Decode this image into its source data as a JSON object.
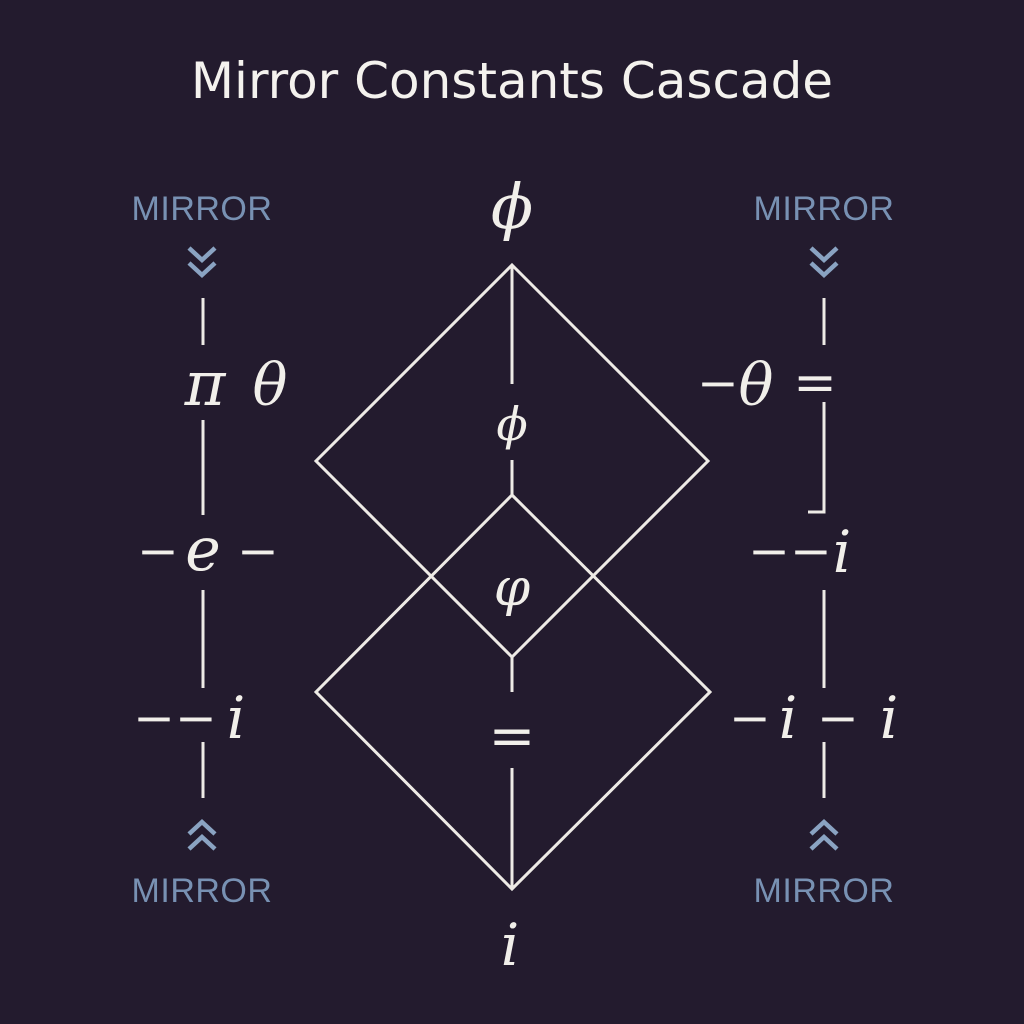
{
  "title": "Mirror Constants Cascade",
  "mirror_labels": {
    "top_left": "MIRROR",
    "top_right": "MIRROR",
    "bottom_left": "MIRROR",
    "bottom_right": "MIRROR"
  },
  "center": {
    "top_symbol": "ϕ",
    "upper_inner_symbol": "ϕ",
    "middle_symbol": "φ",
    "lower_symbol": "=",
    "bottom_symbol": "i"
  },
  "left_column": {
    "row1_a": "π",
    "row1_b": "θ",
    "row2_prefix": "−",
    "row2_symbol": "e",
    "row2_suffix": "−",
    "row3_prefix": "−−",
    "row3_symbol": "i"
  },
  "right_column": {
    "row1_prefix": "−",
    "row1_symbol": "θ",
    "row1_suffix": "=",
    "row2_prefix": "−−",
    "row2_symbol": "i",
    "row3_prefix": "−",
    "row3_symbol_a": "i",
    "row3_mid": "−",
    "row3_symbol_b": "i"
  },
  "icons": {
    "top_left": "chevron-double-down-icon",
    "top_right": "chevron-double-down-icon",
    "bottom_left": "chevron-double-up-icon",
    "bottom_right": "chevron-double-up-icon"
  }
}
